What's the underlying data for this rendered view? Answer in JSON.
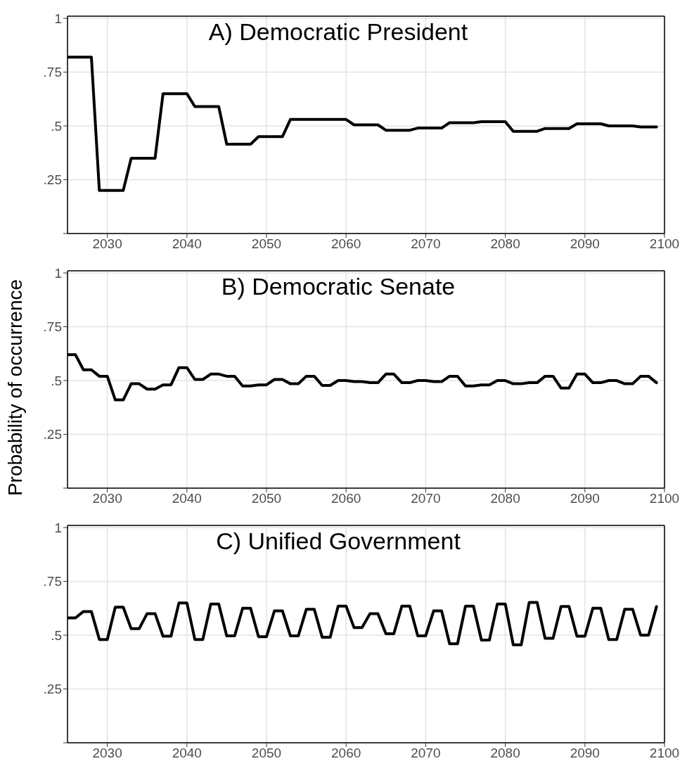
{
  "chart_data": [
    {
      "type": "line",
      "title": "A) Democratic President",
      "xlim": [
        2025,
        2100
      ],
      "xticks": [
        2030,
        2040,
        2050,
        2060,
        2070,
        2080,
        2090,
        2100
      ],
      "ylim": [
        0,
        1.01
      ],
      "yticks": [
        {
          "value": 0,
          "label": null
        },
        {
          "value": 0.25,
          "label": ".25"
        },
        {
          "value": 0.5,
          "label": ".5"
        },
        {
          "value": 0.75,
          "label": ".75"
        },
        {
          "value": 1,
          "label": "1"
        }
      ],
      "grid": true,
      "legend": false,
      "marker": "none",
      "line_style": "solid",
      "x": [
        2025,
        2026,
        2027,
        2028,
        2029,
        2030,
        2031,
        2032,
        2033,
        2034,
        2035,
        2036,
        2037,
        2038,
        2039,
        2040,
        2041,
        2042,
        2043,
        2044,
        2045,
        2046,
        2047,
        2048,
        2049,
        2050,
        2051,
        2052,
        2053,
        2054,
        2055,
        2056,
        2057,
        2058,
        2059,
        2060,
        2061,
        2062,
        2063,
        2064,
        2065,
        2066,
        2067,
        2068,
        2069,
        2070,
        2071,
        2072,
        2073,
        2074,
        2075,
        2076,
        2077,
        2078,
        2079,
        2080,
        2081,
        2082,
        2083,
        2084,
        2085,
        2086,
        2087,
        2088,
        2089,
        2090,
        2091,
        2092,
        2093,
        2094,
        2095,
        2096,
        2097,
        2098,
        2099
      ],
      "series": [
        {
          "color": "#000000",
          "values": [
            0.82,
            0.82,
            0.82,
            0.82,
            0.2,
            0.2,
            0.2,
            0.2,
            0.35,
            0.35,
            0.35,
            0.35,
            0.65,
            0.65,
            0.65,
            0.65,
            0.59,
            0.59,
            0.59,
            0.59,
            0.415,
            0.415,
            0.415,
            0.415,
            0.45,
            0.45,
            0.45,
            0.45,
            0.53,
            0.53,
            0.53,
            0.53,
            0.53,
            0.53,
            0.53,
            0.53,
            0.505,
            0.505,
            0.505,
            0.505,
            0.48,
            0.48,
            0.48,
            0.48,
            0.49,
            0.49,
            0.49,
            0.49,
            0.515,
            0.515,
            0.515,
            0.515,
            0.52,
            0.52,
            0.52,
            0.52,
            0.475,
            0.475,
            0.475,
            0.475,
            0.488,
            0.488,
            0.488,
            0.488,
            0.51,
            0.51,
            0.51,
            0.51,
            0.5,
            0.5,
            0.5,
            0.5,
            0.495,
            0.495,
            0.495
          ]
        }
      ]
    },
    {
      "type": "line",
      "title": "B) Democratic Senate",
      "ylabel": "Probability of occurrence",
      "xlim": [
        2025,
        2100
      ],
      "xticks": [
        2030,
        2040,
        2050,
        2060,
        2070,
        2080,
        2090,
        2100
      ],
      "ylim": [
        0,
        1.01
      ],
      "yticks": [
        {
          "value": 0,
          "label": null
        },
        {
          "value": 0.25,
          "label": ".25"
        },
        {
          "value": 0.5,
          "label": ".5"
        },
        {
          "value": 0.75,
          "label": ".75"
        },
        {
          "value": 1,
          "label": "1"
        }
      ],
      "grid": true,
      "legend": false,
      "marker": "none",
      "line_style": "solid",
      "x": [
        2025,
        2026,
        2027,
        2028,
        2029,
        2030,
        2031,
        2032,
        2033,
        2034,
        2035,
        2036,
        2037,
        2038,
        2039,
        2040,
        2041,
        2042,
        2043,
        2044,
        2045,
        2046,
        2047,
        2048,
        2049,
        2050,
        2051,
        2052,
        2053,
        2054,
        2055,
        2056,
        2057,
        2058,
        2059,
        2060,
        2061,
        2062,
        2063,
        2064,
        2065,
        2066,
        2067,
        2068,
        2069,
        2070,
        2071,
        2072,
        2073,
        2074,
        2075,
        2076,
        2077,
        2078,
        2079,
        2080,
        2081,
        2082,
        2083,
        2084,
        2085,
        2086,
        2087,
        2088,
        2089,
        2090,
        2091,
        2092,
        2093,
        2094,
        2095,
        2096,
        2097,
        2098,
        2099
      ],
      "series": [
        {
          "color": "#000000",
          "values": [
            0.62,
            0.62,
            0.55,
            0.55,
            0.52,
            0.52,
            0.41,
            0.41,
            0.485,
            0.485,
            0.46,
            0.46,
            0.48,
            0.48,
            0.56,
            0.56,
            0.505,
            0.505,
            0.53,
            0.53,
            0.52,
            0.52,
            0.475,
            0.475,
            0.48,
            0.48,
            0.505,
            0.505,
            0.485,
            0.485,
            0.52,
            0.52,
            0.477,
            0.477,
            0.5,
            0.5,
            0.495,
            0.495,
            0.49,
            0.49,
            0.53,
            0.53,
            0.49,
            0.49,
            0.5,
            0.5,
            0.495,
            0.495,
            0.52,
            0.52,
            0.475,
            0.475,
            0.48,
            0.48,
            0.5,
            0.5,
            0.485,
            0.485,
            0.49,
            0.49,
            0.52,
            0.52,
            0.465,
            0.465,
            0.53,
            0.53,
            0.49,
            0.49,
            0.5,
            0.5,
            0.485,
            0.485,
            0.52,
            0.52,
            0.49
          ]
        }
      ]
    },
    {
      "type": "line",
      "title": "C) Unified Government",
      "xlim": [
        2025,
        2100
      ],
      "xticks": [
        2030,
        2040,
        2050,
        2060,
        2070,
        2080,
        2090,
        2100
      ],
      "ylim": [
        0,
        1.01
      ],
      "yticks": [
        {
          "value": 0,
          "label": null
        },
        {
          "value": 0.25,
          "label": ".25"
        },
        {
          "value": 0.5,
          "label": ".5"
        },
        {
          "value": 0.75,
          "label": ".75"
        },
        {
          "value": 1,
          "label": "1"
        }
      ],
      "grid": true,
      "legend": false,
      "marker": "none",
      "line_style": "solid",
      "x": [
        2025,
        2026,
        2027,
        2028,
        2029,
        2030,
        2031,
        2032,
        2033,
        2034,
        2035,
        2036,
        2037,
        2038,
        2039,
        2040,
        2041,
        2042,
        2043,
        2044,
        2045,
        2046,
        2047,
        2048,
        2049,
        2050,
        2051,
        2052,
        2053,
        2054,
        2055,
        2056,
        2057,
        2058,
        2059,
        2060,
        2061,
        2062,
        2063,
        2064,
        2065,
        2066,
        2067,
        2068,
        2069,
        2070,
        2071,
        2072,
        2073,
        2074,
        2075,
        2076,
        2077,
        2078,
        2079,
        2080,
        2081,
        2082,
        2083,
        2084,
        2085,
        2086,
        2087,
        2088,
        2089,
        2090,
        2091,
        2092,
        2093,
        2094,
        2095,
        2096,
        2097,
        2098,
        2099
      ],
      "series": [
        {
          "color": "#000000",
          "values": [
            0.58,
            0.58,
            0.61,
            0.61,
            0.48,
            0.48,
            0.63,
            0.63,
            0.53,
            0.53,
            0.6,
            0.6,
            0.495,
            0.495,
            0.65,
            0.65,
            0.48,
            0.48,
            0.645,
            0.645,
            0.497,
            0.497,
            0.625,
            0.625,
            0.493,
            0.493,
            0.613,
            0.613,
            0.497,
            0.497,
            0.62,
            0.62,
            0.49,
            0.49,
            0.635,
            0.635,
            0.535,
            0.535,
            0.6,
            0.6,
            0.507,
            0.507,
            0.635,
            0.635,
            0.497,
            0.497,
            0.613,
            0.613,
            0.46,
            0.46,
            0.635,
            0.635,
            0.477,
            0.477,
            0.645,
            0.645,
            0.455,
            0.455,
            0.652,
            0.652,
            0.485,
            0.485,
            0.633,
            0.633,
            0.495,
            0.495,
            0.625,
            0.625,
            0.48,
            0.48,
            0.62,
            0.62,
            0.5,
            0.5,
            0.633
          ]
        }
      ]
    }
  ]
}
